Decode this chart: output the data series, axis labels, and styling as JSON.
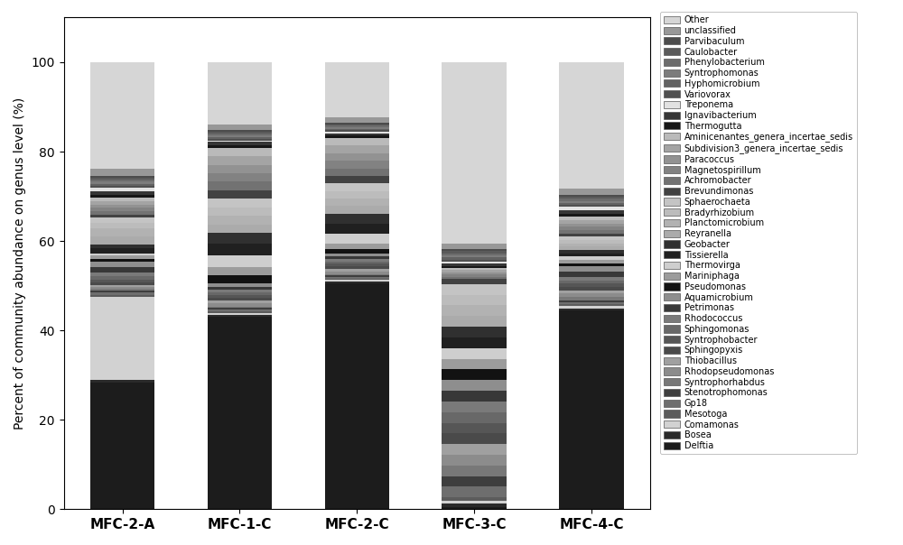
{
  "samples": [
    "MFC-2-A",
    "MFC-1-C",
    "MFC-2-C",
    "MFC-3-C",
    "MFC-4-C"
  ],
  "genera": [
    "Delftia",
    "Bosea",
    "Comamonas",
    "Mesotoga",
    "Gp18",
    "Stenotrophomonas",
    "Syntrophorhabdus",
    "Rhodopseudomonas",
    "Thiobacillus",
    "Sphingopyxis",
    "Syntrophobacter",
    "Sphingomonas",
    "Rhodococcus",
    "Petrimonas",
    "Aquamicrobium",
    "Pseudomonas",
    "Mariniphaga",
    "Thermovirga",
    "Tissierella",
    "Geobacter",
    "Reyranella",
    "Planctomicrobium",
    "Bradyrhizobium",
    "Sphaerochaeta",
    "Brevundimonas",
    "Achromobacter",
    "Magnetospirillum",
    "Paracoccus",
    "Subdivision3_genera_incertae_sedis",
    "Aminicenantes_genera_incertae_sedis",
    "Thermogutta",
    "Ignavibacterium",
    "Treponema",
    "Variovorax",
    "Hyphomicrobium",
    "Syntrophomonas",
    "Phenylobacterium",
    "Caulobacter",
    "Parvibaculum",
    "unclassified",
    "Other"
  ],
  "colors": [
    "#1c1c1c",
    "#2a2a2a",
    "#d2d2d2",
    "#5c5c5c",
    "#6e6e6e",
    "#3e3e3e",
    "#787878",
    "#8c8c8c",
    "#a0a0a0",
    "#4a4a4a",
    "#565656",
    "#686868",
    "#7a7a7a",
    "#383838",
    "#8e8e8e",
    "#121212",
    "#9c9c9c",
    "#cecece",
    "#202020",
    "#303030",
    "#ababab",
    "#b2b2b2",
    "#bcbcbc",
    "#c4c4c4",
    "#424242",
    "#727272",
    "#828282",
    "#929292",
    "#a4a4a4",
    "#bababa",
    "#161616",
    "#363636",
    "#e2e2e2",
    "#505050",
    "#626262",
    "#7c7c7c",
    "#6c6c6c",
    "#5a5a5a",
    "#4c4c4c",
    "#989898",
    "#d6d6d6"
  ],
  "values": {
    "MFC-2-A": [
      19.0,
      0.3,
      12.5,
      0.3,
      0.3,
      0.3,
      0.3,
      0.3,
      0.3,
      0.3,
      0.5,
      0.5,
      0.5,
      0.8,
      0.8,
      0.5,
      0.5,
      0.3,
      0.8,
      0.5,
      1.2,
      1.2,
      0.8,
      0.8,
      0.5,
      0.5,
      0.5,
      0.5,
      0.5,
      0.5,
      0.5,
      0.5,
      0.5,
      0.3,
      0.3,
      0.3,
      0.3,
      0.3,
      0.3,
      1.0,
      16.0
    ],
    "MFC-1-C": [
      34.0,
      0.3,
      0.3,
      0.3,
      0.3,
      0.3,
      0.3,
      0.5,
      0.5,
      0.5,
      0.5,
      0.5,
      0.5,
      0.5,
      0.5,
      1.5,
      1.5,
      2.0,
      2.0,
      2.0,
      1.5,
      1.5,
      1.5,
      1.5,
      1.5,
      1.5,
      1.5,
      1.5,
      1.5,
      1.5,
      0.5,
      0.5,
      0.3,
      0.3,
      0.3,
      0.3,
      0.3,
      0.3,
      0.3,
      1.0,
      11.0
    ],
    "MFC-2-C": [
      45.0,
      0.3,
      0.3,
      0.3,
      0.3,
      0.3,
      0.3,
      0.5,
      0.5,
      0.5,
      0.5,
      0.5,
      0.5,
      0.5,
      0.5,
      1.0,
      1.0,
      2.0,
      2.0,
      2.0,
      1.5,
      1.5,
      1.5,
      1.5,
      1.5,
      1.5,
      1.5,
      1.5,
      1.5,
      1.5,
      0.5,
      0.5,
      0.3,
      0.3,
      0.3,
      0.3,
      0.3,
      0.3,
      0.3,
      1.0,
      11.0
    ],
    "MFC-3-C": [
      0.2,
      0.3,
      0.3,
      0.3,
      1.0,
      1.0,
      1.0,
      1.0,
      1.0,
      1.0,
      1.0,
      1.0,
      1.0,
      1.0,
      1.0,
      1.0,
      1.0,
      1.0,
      1.0,
      1.0,
      1.0,
      1.0,
      1.0,
      1.0,
      0.5,
      0.2,
      0.2,
      0.2,
      0.2,
      0.2,
      0.2,
      0.2,
      0.2,
      0.2,
      0.2,
      0.2,
      0.2,
      0.2,
      0.2,
      0.5,
      17.0
    ],
    "MFC-4-C": [
      30.0,
      0.3,
      0.3,
      0.3,
      0.3,
      0.3,
      0.5,
      0.5,
      0.5,
      0.5,
      0.5,
      0.5,
      0.5,
      0.8,
      0.8,
      0.5,
      0.5,
      0.5,
      0.5,
      0.5,
      0.5,
      0.5,
      0.5,
      0.5,
      0.5,
      0.5,
      0.5,
      0.5,
      0.5,
      0.5,
      0.5,
      0.5,
      0.5,
      0.3,
      0.3,
      0.3,
      0.3,
      0.3,
      0.3,
      1.0,
      19.0
    ]
  },
  "ylabel": "Percent of community abundance on genus level (%)",
  "ylim": [
    0,
    110
  ],
  "yticks": [
    0,
    20,
    40,
    60,
    80,
    100
  ],
  "figsize": [
    10.0,
    6.04
  ],
  "dpi": 100,
  "bar_width": 0.55
}
